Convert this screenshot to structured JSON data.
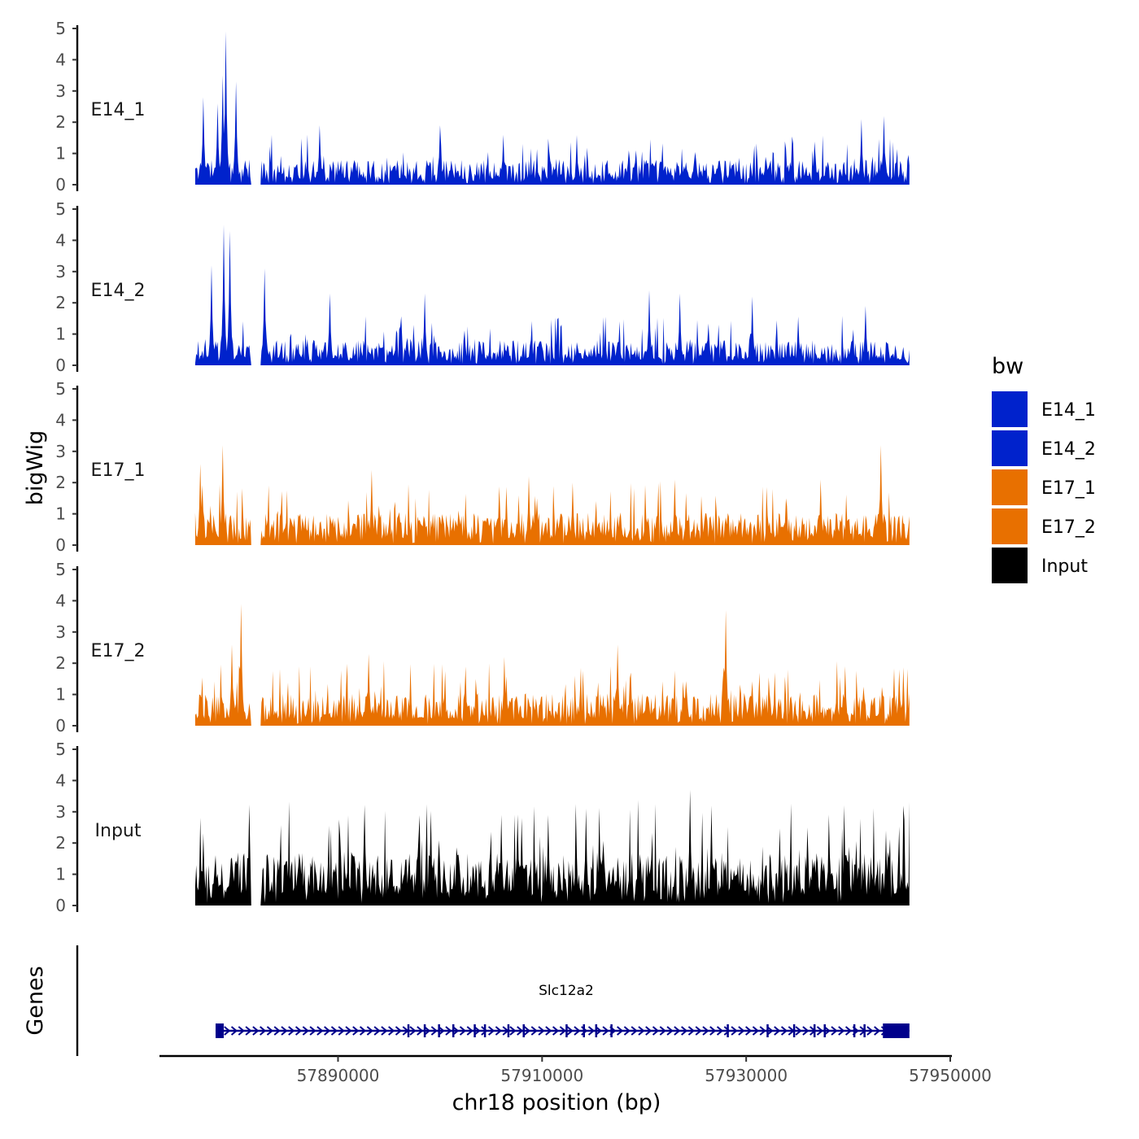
{
  "chart_data": {
    "type": "area",
    "genome_track": true,
    "ylabel": "bigWig",
    "xlabel": "chr18 position (bp)",
    "ylim": [
      0,
      5
    ],
    "yticks": [
      "0",
      "1",
      "2",
      "3",
      "4",
      "5"
    ],
    "xlim": [
      57872500,
      57950000
    ],
    "xticks": [
      {
        "value": 57890000,
        "label": "57890000"
      },
      {
        "value": 57910000,
        "label": "57910000"
      },
      {
        "value": 57930000,
        "label": "57930000"
      },
      {
        "value": 57950000,
        "label": "57950000"
      }
    ],
    "data_range": [
      57876000,
      57946000
    ],
    "gap_ranges": [
      [
        57881500,
        57882400
      ]
    ],
    "tracks": [
      {
        "name": "E14_1",
        "color": "#0022CC",
        "seed": 11,
        "baseline": 0.35,
        "peaks": [
          [
            57879000,
            4.9
          ],
          [
            57878700,
            3.5
          ],
          [
            57876800,
            2.8
          ],
          [
            57878200,
            2.6
          ],
          [
            57880000,
            3.3
          ],
          [
            57888200,
            1.9
          ],
          [
            57900000,
            1.9
          ],
          [
            57906200,
            1.6
          ],
          [
            57943500,
            2.2
          ],
          [
            57941300,
            2.1
          ]
        ]
      },
      {
        "name": "E14_2",
        "color": "#0022CC",
        "seed": 23,
        "baseline": 0.35,
        "peaks": [
          [
            57878800,
            4.5
          ],
          [
            57877600,
            3.2
          ],
          [
            57879400,
            4.3
          ],
          [
            57882800,
            3.1
          ],
          [
            57889200,
            2.3
          ],
          [
            57898500,
            2.3
          ],
          [
            57920500,
            2.4
          ],
          [
            57923500,
            2.3
          ],
          [
            57930600,
            2.2
          ],
          [
            57941700,
            1.9
          ]
        ]
      },
      {
        "name": "E17_1",
        "color": "#E87000",
        "seed": 37,
        "baseline": 0.45,
        "peaks": [
          [
            57878700,
            3.2
          ],
          [
            57876500,
            2.6
          ],
          [
            57893300,
            2.4
          ],
          [
            57908700,
            2.2
          ],
          [
            57923000,
            2.1
          ],
          [
            57943200,
            3.2
          ],
          [
            57937300,
            2.1
          ],
          [
            57913000,
            2.0
          ]
        ]
      },
      {
        "name": "E17_2",
        "color": "#E87000",
        "seed": 53,
        "baseline": 0.45,
        "peaks": [
          [
            57880500,
            3.9
          ],
          [
            57879600,
            2.6
          ],
          [
            57893000,
            2.3
          ],
          [
            57906300,
            2.2
          ],
          [
            57928000,
            3.7
          ],
          [
            57917400,
            2.6
          ],
          [
            57939700,
            1.9
          ],
          [
            57945000,
            1.8
          ]
        ]
      },
      {
        "name": "Input",
        "color": "#000000",
        "seed": 71,
        "baseline": 0.75,
        "peaks": [
          [
            57924500,
            3.7
          ],
          [
            57914300,
            3.1
          ],
          [
            57906000,
            2.9
          ],
          [
            57910600,
            2.9
          ],
          [
            57908000,
            2.8
          ],
          [
            57926600,
            2.4
          ],
          [
            57936000,
            2.5
          ],
          [
            57943700,
            2.4
          ]
        ]
      }
    ],
    "legend": {
      "title": "bw",
      "entries": [
        {
          "label": "E14_1",
          "color": "#0022CC"
        },
        {
          "label": "E14_2",
          "color": "#0022CC"
        },
        {
          "label": "E17_1",
          "color": "#E87000"
        },
        {
          "label": "E17_2",
          "color": "#E87000"
        },
        {
          "label": "Input",
          "color": "#000000"
        }
      ]
    },
    "genes": {
      "title": "Genes",
      "gene_name": "Slc12a2",
      "start": 57878000,
      "end": 57946000,
      "color": "#00008B",
      "exons": [
        [
          57878000,
          57878800
        ],
        [
          57896800,
          57897000
        ],
        [
          57898400,
          57898600
        ],
        [
          57899800,
          57900000
        ],
        [
          57901200,
          57901400
        ],
        [
          57903300,
          57903500
        ],
        [
          57904300,
          57904500
        ],
        [
          57906600,
          57906800
        ],
        [
          57908100,
          57908300
        ],
        [
          57912300,
          57912500
        ],
        [
          57914000,
          57914200
        ],
        [
          57915200,
          57915400
        ],
        [
          57916700,
          57916900
        ],
        [
          57928100,
          57928300
        ],
        [
          57932000,
          57932200
        ],
        [
          57934600,
          57934800
        ],
        [
          57936600,
          57936800
        ],
        [
          57937600,
          57937800
        ],
        [
          57940500,
          57940700
        ],
        [
          57941500,
          57941700
        ],
        [
          57943400,
          57946000
        ]
      ]
    }
  }
}
